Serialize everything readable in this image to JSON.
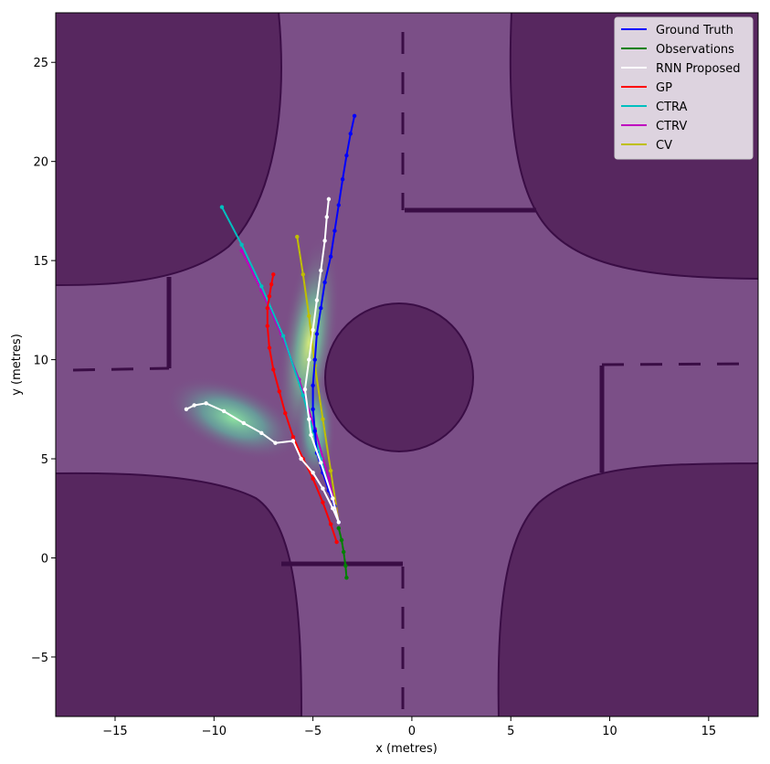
{
  "chart_data": {
    "type": "line",
    "title": "",
    "xlabel": "x (metres)",
    "ylabel": "y (metres)",
    "xlim": [
      -18,
      17.5
    ],
    "ylim": [
      -8,
      27.5
    ],
    "x_ticks": [
      -15,
      -10,
      -5,
      0,
      5,
      10,
      15
    ],
    "y_ticks": [
      -5,
      0,
      5,
      10,
      15,
      20,
      25
    ],
    "x_tick_labels": [
      "−15",
      "−10",
      "−5",
      "0",
      "5",
      "10",
      "15"
    ],
    "y_tick_labels": [
      "−5",
      "0",
      "5",
      "10",
      "15",
      "20",
      "25"
    ],
    "grid": false,
    "legend_position": "top-right",
    "colors": {
      "background": "#7b4f87",
      "obstacle": "#57275f",
      "outline": "#3a0d45"
    },
    "series": [
      {
        "name": "Ground Truth",
        "color": "#0000ff",
        "markers": true,
        "points": [
          [
            -3.7,
            1.8
          ],
          [
            -3.9,
            2.6
          ],
          [
            -4.2,
            3.4
          ],
          [
            -4.5,
            4.3
          ],
          [
            -4.8,
            5.3
          ],
          [
            -4.9,
            6.4
          ],
          [
            -5.0,
            7.5
          ],
          [
            -5.0,
            8.7
          ],
          [
            -4.9,
            10.0
          ],
          [
            -4.8,
            11.3
          ],
          [
            -4.6,
            12.6
          ],
          [
            -4.4,
            13.9
          ],
          [
            -4.1,
            15.2
          ],
          [
            -3.9,
            16.5
          ],
          [
            -3.7,
            17.8
          ],
          [
            -3.5,
            19.1
          ],
          [
            -3.3,
            20.3
          ],
          [
            -3.1,
            21.4
          ],
          [
            -2.9,
            22.3
          ]
        ]
      },
      {
        "name": "Observations",
        "color": "#008000",
        "markers": true,
        "points": [
          [
            -3.3,
            -1.0
          ],
          [
            -3.35,
            -0.4
          ],
          [
            -3.45,
            0.3
          ],
          [
            -3.55,
            0.9
          ],
          [
            -3.7,
            1.5
          ]
        ]
      },
      {
        "name": "RNN Proposed",
        "color": "#ffffff",
        "markers": true,
        "points": [
          [
            -11.4,
            7.5
          ],
          [
            -11.0,
            7.7
          ],
          [
            -10.4,
            7.8
          ],
          [
            -9.5,
            7.4
          ],
          [
            -8.5,
            6.8
          ],
          [
            -7.6,
            6.3
          ],
          [
            -6.9,
            5.8
          ],
          [
            -6.0,
            5.9
          ],
          [
            -5.6,
            5.0
          ],
          [
            -5.0,
            4.3
          ],
          [
            -4.5,
            3.5
          ],
          [
            -4.0,
            2.5
          ],
          [
            -3.7,
            1.8
          ],
          [
            -4.0,
            3.0
          ],
          [
            -4.6,
            4.8
          ],
          [
            -5.1,
            6.2
          ],
          [
            -5.2,
            7.0
          ],
          [
            -5.4,
            8.5
          ],
          [
            -5.2,
            10.0
          ],
          [
            -5.0,
            11.5
          ],
          [
            -4.8,
            13.0
          ],
          [
            -4.6,
            14.5
          ],
          [
            -4.4,
            16.0
          ],
          [
            -4.3,
            17.2
          ],
          [
            -4.2,
            18.1
          ]
        ]
      },
      {
        "name": "GP",
        "color": "#ff0000",
        "markers": true,
        "points": [
          [
            -3.8,
            0.8
          ],
          [
            -4.1,
            1.7
          ],
          [
            -4.5,
            2.8
          ],
          [
            -5.0,
            4.0
          ],
          [
            -5.5,
            5.0
          ],
          [
            -6.0,
            6.1
          ],
          [
            -6.4,
            7.3
          ],
          [
            -6.7,
            8.4
          ],
          [
            -7.0,
            9.5
          ],
          [
            -7.2,
            10.6
          ],
          [
            -7.3,
            11.7
          ],
          [
            -7.3,
            12.6
          ],
          [
            -7.2,
            13.2
          ],
          [
            -7.1,
            13.8
          ],
          [
            -7.0,
            14.3
          ]
        ]
      },
      {
        "name": "CTRA",
        "color": "#00bfbf",
        "markers": true,
        "points": [
          [
            -3.7,
            1.8
          ],
          [
            -4.6,
            5.0
          ],
          [
            -5.5,
            8.2
          ],
          [
            -6.5,
            11.2
          ],
          [
            -7.6,
            13.7
          ],
          [
            -8.6,
            15.8
          ],
          [
            -9.6,
            17.7
          ]
        ]
      },
      {
        "name": "CTRV",
        "color": "#bf00bf",
        "markers": true,
        "points": [
          [
            -3.7,
            1.8
          ],
          [
            -4.2,
            4.0
          ],
          [
            -4.9,
            6.5
          ],
          [
            -5.7,
            9.0
          ],
          [
            -6.6,
            11.3
          ],
          [
            -7.6,
            13.5
          ],
          [
            -8.6,
            15.5
          ]
        ]
      },
      {
        "name": "CV",
        "color": "#bfbf00",
        "markers": true,
        "points": [
          [
            -3.7,
            1.8
          ],
          [
            -4.1,
            4.4
          ],
          [
            -4.5,
            7.0
          ],
          [
            -4.9,
            9.7
          ],
          [
            -5.2,
            12.2
          ],
          [
            -5.5,
            14.3
          ],
          [
            -5.8,
            16.2
          ]
        ]
      }
    ]
  }
}
